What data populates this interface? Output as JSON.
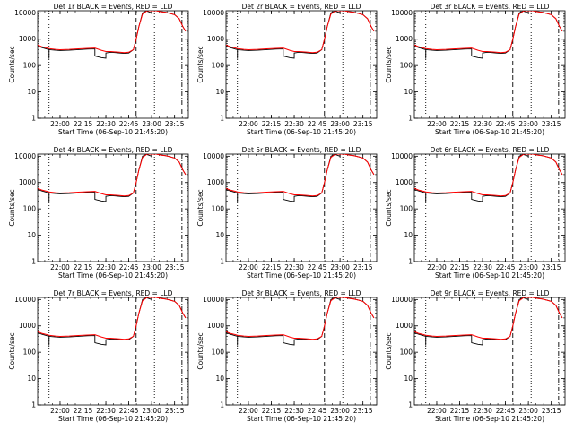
{
  "figure": {
    "time_start": 21.7556,
    "time_end": 23.4,
    "ymin": 1,
    "ymax": 12000
  },
  "chart_data": [
    {
      "type": "line",
      "title": "Det 1r BLACK = Events, RED = LLD",
      "xlabel": "Start Time (06-Sep-10 21:45:20)",
      "ylabel": "Counts/sec",
      "xticks": [
        "22:00",
        "22:15",
        "22:30",
        "22:45",
        "23:00",
        "23:15"
      ],
      "yticks": [
        "1",
        "10",
        "100",
        "1000",
        "10000"
      ],
      "series": [
        {
          "name": "Events",
          "color": "#000000"
        },
        {
          "name": "LLD",
          "color": "#ff0000"
        }
      ]
    },
    {
      "type": "line",
      "title": "Det 2r BLACK = Events, RED = LLD",
      "xlabel": "Start Time (06-Sep-10 21:45:20)",
      "ylabel": "Counts/sec",
      "xticks": [
        "22:00",
        "22:15",
        "22:30",
        "22:45",
        "23:00",
        "23:15"
      ],
      "yticks": [
        "1",
        "10",
        "100",
        "1000",
        "10000"
      ],
      "series": [
        {
          "name": "Events",
          "color": "#000000"
        },
        {
          "name": "LLD",
          "color": "#ff0000"
        }
      ]
    },
    {
      "type": "line",
      "title": "Det 3r BLACK = Events, RED = LLD",
      "xlabel": "Start Time (06-Sep-10 21:45:20)",
      "ylabel": "Counts/sec",
      "xticks": [
        "22:00",
        "22:15",
        "22:30",
        "22:45",
        "23:00",
        "23:15"
      ],
      "yticks": [
        "1",
        "10",
        "100",
        "1000",
        "10000"
      ],
      "series": [
        {
          "name": "Events",
          "color": "#000000"
        },
        {
          "name": "LLD",
          "color": "#ff0000"
        }
      ]
    },
    {
      "type": "line",
      "title": "Det 4r BLACK = Events, RED = LLD",
      "xlabel": "Start Time (06-Sep-10 21:45:20)",
      "ylabel": "Counts/sec",
      "xticks": [
        "22:00",
        "22:15",
        "22:30",
        "22:45",
        "23:00",
        "23:15"
      ],
      "yticks": [
        "1",
        "10",
        "100",
        "1000",
        "10000"
      ],
      "series": [
        {
          "name": "Events",
          "color": "#000000"
        },
        {
          "name": "LLD",
          "color": "#ff0000"
        }
      ]
    },
    {
      "type": "line",
      "title": "Det 5r BLACK = Events, RED = LLD",
      "xlabel": "Start Time (06-Sep-10 21:45:20)",
      "ylabel": "Counts/sec",
      "xticks": [
        "22:00",
        "22:15",
        "22:30",
        "22:45",
        "23:00",
        "23:15"
      ],
      "yticks": [
        "1",
        "10",
        "100",
        "1000",
        "10000"
      ],
      "series": [
        {
          "name": "Events",
          "color": "#000000"
        },
        {
          "name": "LLD",
          "color": "#ff0000"
        }
      ]
    },
    {
      "type": "line",
      "title": "Det 6r BLACK = Events, RED = LLD",
      "xlabel": "Start Time (06-Sep-10 21:45:20)",
      "ylabel": "Counts/sec",
      "xticks": [
        "22:00",
        "22:15",
        "22:30",
        "22:45",
        "23:00",
        "23:15"
      ],
      "yticks": [
        "1",
        "10",
        "100",
        "1000",
        "10000"
      ],
      "series": [
        {
          "name": "Events",
          "color": "#000000"
        },
        {
          "name": "LLD",
          "color": "#ff0000"
        }
      ]
    },
    {
      "type": "line",
      "title": "Det 7r BLACK = Events, RED = LLD",
      "xlabel": "Start Time (06-Sep-10 21:45:20)",
      "ylabel": "Counts/sec",
      "xticks": [
        "22:00",
        "22:15",
        "22:30",
        "22:45",
        "23:00",
        "23:15"
      ],
      "yticks": [
        "1",
        "10",
        "100",
        "1000",
        "10000"
      ],
      "series": [
        {
          "name": "Events",
          "color": "#000000"
        },
        {
          "name": "LLD",
          "color": "#ff0000"
        }
      ]
    },
    {
      "type": "line",
      "title": "Det 8r BLACK = Events, RED = LLD",
      "xlabel": "Start Time (06-Sep-10 21:45:20)",
      "ylabel": "Counts/sec",
      "xticks": [
        "22:00",
        "22:15",
        "22:30",
        "22:45",
        "23:00",
        "23:15"
      ],
      "yticks": [
        "1",
        "10",
        "100",
        "1000",
        "10000"
      ],
      "series": [
        {
          "name": "Events",
          "color": "#000000"
        },
        {
          "name": "LLD",
          "color": "#ff0000"
        }
      ]
    },
    {
      "type": "line",
      "title": "Det 9r BLACK = Events, RED = LLD",
      "xlabel": "Start Time (06-Sep-10 21:45:20)",
      "ylabel": "Counts/sec",
      "xticks": [
        "22:00",
        "22:15",
        "22:30",
        "22:45",
        "23:00",
        "23:15"
      ],
      "yticks": [
        "1",
        "10",
        "100",
        "1000",
        "10000"
      ],
      "series": [
        {
          "name": "Events",
          "color": "#000000"
        },
        {
          "name": "LLD",
          "color": "#ff0000"
        }
      ]
    }
  ],
  "tick_hours": [
    22.0,
    22.25,
    22.5,
    22.75,
    23.0,
    23.25
  ],
  "ytick_values": [
    1,
    10,
    100,
    1000,
    10000
  ],
  "markers": [
    {
      "t": 21.88,
      "style": "dotted"
    },
    {
      "t": 22.83,
      "style": "dashed"
    },
    {
      "t": 23.03,
      "style": "dotted"
    },
    {
      "t": 23.33,
      "style": "dashdot"
    }
  ],
  "events_curve": [
    [
      21.7556,
      550
    ],
    [
      21.8,
      480
    ],
    [
      21.85,
      430
    ],
    [
      21.88,
      400
    ],
    [
      21.88,
      180
    ],
    [
      21.881,
      400
    ],
    [
      21.95,
      380
    ],
    [
      22.0,
      370
    ],
    [
      22.1,
      380
    ],
    [
      22.2,
      400
    ],
    [
      22.3,
      420
    ],
    [
      22.38,
      430
    ],
    [
      22.38,
      230
    ],
    [
      22.4,
      220
    ],
    [
      22.45,
      200
    ],
    [
      22.5,
      190
    ],
    [
      22.5,
      300
    ],
    [
      22.55,
      320
    ],
    [
      22.6,
      310
    ],
    [
      22.65,
      300
    ],
    [
      22.7,
      290
    ],
    [
      22.75,
      300
    ],
    [
      22.8,
      400
    ],
    [
      22.83,
      1000
    ],
    [
      22.86,
      3000
    ],
    [
      22.9,
      10000
    ],
    [
      22.95,
      12000
    ],
    [
      22.95,
      11500
    ],
    [
      23.0,
      10000
    ],
    [
      23.0,
      12000
    ],
    [
      23.05,
      12000
    ],
    [
      23.1,
      11000
    ],
    [
      23.15,
      10500
    ],
    [
      23.2,
      9500
    ],
    [
      23.25,
      8500
    ],
    [
      23.3,
      6000
    ],
    [
      23.34,
      3000
    ],
    [
      23.37,
      2000
    ]
  ],
  "lld_curve": [
    [
      21.7556,
      600
    ],
    [
      21.8,
      520
    ],
    [
      21.85,
      470
    ],
    [
      21.88,
      440
    ],
    [
      21.95,
      410
    ],
    [
      22.0,
      400
    ],
    [
      22.1,
      410
    ],
    [
      22.2,
      430
    ],
    [
      22.3,
      450
    ],
    [
      22.38,
      460
    ],
    [
      22.45,
      380
    ],
    [
      22.5,
      340
    ],
    [
      22.55,
      340
    ],
    [
      22.6,
      330
    ],
    [
      22.65,
      320
    ],
    [
      22.7,
      310
    ],
    [
      22.75,
      320
    ],
    [
      22.8,
      400
    ],
    [
      22.83,
      1000
    ],
    [
      22.86,
      3000
    ],
    [
      22.9,
      9000
    ],
    [
      22.95,
      12000
    ],
    [
      23.05,
      12000
    ],
    [
      23.1,
      11000
    ],
    [
      23.15,
      10500
    ],
    [
      23.2,
      9500
    ],
    [
      23.25,
      8500
    ],
    [
      23.3,
      6000
    ],
    [
      23.34,
      3000
    ],
    [
      23.37,
      2000
    ]
  ]
}
